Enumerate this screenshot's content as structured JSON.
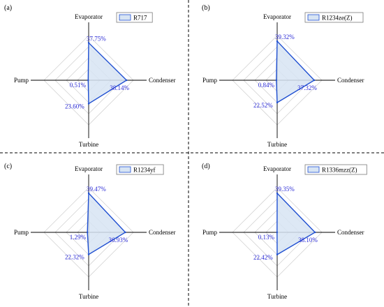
{
  "colors": {
    "series_line": "#1f4fd1",
    "series_fill": "#d7e4f3",
    "value_text": "#2b2bd6",
    "axis": "#000000",
    "grid": "#d4d4d4",
    "divider": "#000000"
  },
  "chart_data": [
    {
      "type": "radar",
      "panel_label": "(a)",
      "axes": [
        "Evaporator",
        "Condenser",
        "Turbine",
        "Pump"
      ],
      "series": [
        {
          "name": "R717",
          "values": [
            37.75,
            38.14,
            23.6,
            0.51
          ],
          "labels": [
            "37.75%",
            "38.14%",
            "23.60%",
            "0.51%"
          ]
        }
      ],
      "range": [
        0,
        45
      ],
      "grid": true,
      "legend_position": "top-right"
    },
    {
      "type": "radar",
      "panel_label": "(b)",
      "axes": [
        "Evaporator",
        "Condenser",
        "Turbine",
        "Pump"
      ],
      "series": [
        {
          "name": "R1234ze(Z)",
          "values": [
            39.32,
            37.32,
            22.52,
            0.84
          ],
          "labels": [
            "39.32%",
            "37.32%",
            "22.52%",
            "0.84%"
          ]
        }
      ],
      "range": [
        0,
        45
      ],
      "grid": true,
      "legend_position": "top-right"
    },
    {
      "type": "radar",
      "panel_label": "(c)",
      "axes": [
        "Evaporator",
        "Condenser",
        "Turbine",
        "Pump"
      ],
      "series": [
        {
          "name": "R1234yf",
          "values": [
            39.47,
            36.93,
            22.32,
            1.29
          ],
          "labels": [
            "39.47%",
            "36.93%",
            "22.32%",
            "1.29%"
          ]
        }
      ],
      "range": [
        0,
        45
      ],
      "grid": true,
      "legend_position": "top-right"
    },
    {
      "type": "radar",
      "panel_label": "(d)",
      "axes": [
        "Evaporator",
        "Condenser",
        "Turbine",
        "Pump"
      ],
      "series": [
        {
          "name": "R1336mzz(Z)",
          "values": [
            39.35,
            38.1,
            22.42,
            0.13
          ],
          "labels": [
            "39.35%",
            "38.10%",
            "22.42%",
            "0.13%"
          ]
        }
      ],
      "range": [
        0,
        45
      ],
      "grid": true,
      "legend_position": "top-right"
    }
  ]
}
